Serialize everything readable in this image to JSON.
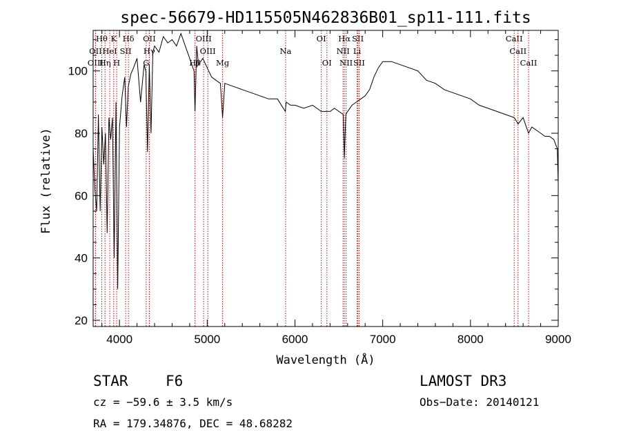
{
  "chart_data": {
    "type": "line",
    "title": "spec-56679-HD115505N462836B01_sp11-111.fits",
    "xlabel": "Wavelength (Å)",
    "ylabel": "Flux (relative)",
    "xlim": [
      3700,
      9000
    ],
    "ylim": [
      18,
      113
    ],
    "x_ticks": [
      4000,
      5000,
      6000,
      7000,
      8000,
      9000
    ],
    "y_ticks": [
      20,
      40,
      60,
      80,
      100
    ],
    "line_color": "#000000",
    "marker_color": "#cc0000",
    "grid": false,
    "series": [
      {
        "x": [
          3700,
          3720,
          3740,
          3760,
          3780,
          3800,
          3820,
          3840,
          3860,
          3880,
          3900,
          3920,
          3940,
          3960,
          3980,
          4000,
          4030,
          4060,
          4080,
          4100,
          4130,
          4160,
          4200,
          4240,
          4280,
          4300,
          4320,
          4340,
          4360,
          4380,
          4400,
          4450,
          4500,
          4550,
          4600,
          4650,
          4700,
          4750,
          4800,
          4850,
          4861,
          4880,
          4900,
          4950,
          5000,
          5050,
          5100,
          5150,
          5175,
          5200,
          5300,
          5400,
          5500,
          5600,
          5700,
          5800,
          5890,
          5900,
          5950,
          6000,
          6100,
          6200,
          6300,
          6400,
          6450,
          6500,
          6550,
          6563,
          6580,
          6600,
          6650,
          6700,
          6750,
          6800,
          6850,
          6900,
          6950,
          7000,
          7100,
          7200,
          7300,
          7400,
          7500,
          7600,
          7700,
          7800,
          7900,
          8000,
          8100,
          8200,
          8300,
          8400,
          8500,
          8542,
          8600,
          8662,
          8700,
          8800,
          8850,
          8900,
          8950,
          8990,
          9000
        ],
        "y": [
          75,
          62,
          55,
          86,
          55,
          82,
          70,
          80,
          48,
          85,
          78,
          85,
          40,
          90,
          30,
          82,
          92,
          98,
          82,
          95,
          99,
          101,
          104,
          90,
          102,
          100,
          74,
          102,
          80,
          106,
          108,
          106,
          111,
          109,
          110,
          108,
          112,
          108,
          104,
          100,
          87,
          108,
          102,
          104,
          101,
          98,
          97,
          96,
          85,
          96,
          95,
          94,
          93,
          92,
          91,
          91,
          87,
          90,
          89,
          89,
          88,
          89,
          87,
          87,
          88,
          87,
          86,
          72,
          86,
          87,
          89,
          90,
          91,
          92,
          94,
          98,
          101,
          103,
          103,
          102,
          101,
          100,
          97,
          96,
          94,
          93,
          92,
          91,
          89,
          88,
          87,
          86,
          85,
          83,
          85,
          80,
          82,
          80,
          79,
          79,
          78,
          75,
          64
        ]
      }
    ],
    "line_markers": [
      {
        "name": "Hθ",
        "x": 3798,
        "row": 1
      },
      {
        "name": "K",
        "x": 3934,
        "row": 1
      },
      {
        "name": "Hδ",
        "x": 4102,
        "row": 1
      },
      {
        "name": "OII",
        "x": 4340,
        "row": 1
      },
      {
        "name": "OIII",
        "x": 4959,
        "row": 1
      },
      {
        "name": "OI",
        "x": 6300,
        "row": 1
      },
      {
        "name": "Hα",
        "x": 6563,
        "row": 1
      },
      {
        "name": "SII",
        "x": 6717,
        "row": 1
      },
      {
        "name": "CaII",
        "x": 8498,
        "row": 1
      },
      {
        "name": "OII",
        "x": 3727,
        "row": 2
      },
      {
        "name": "HeI",
        "x": 3889,
        "row": 2
      },
      {
        "name": "SII",
        "x": 4070,
        "row": 2
      },
      {
        "name": "Hγ",
        "x": 4340,
        "row": 2
      },
      {
        "name": "OIII",
        "x": 5007,
        "row": 2
      },
      {
        "name": "Na",
        "x": 5893,
        "row": 2
      },
      {
        "name": "NII",
        "x": 6548,
        "row": 2
      },
      {
        "name": "Li",
        "x": 6708,
        "row": 2
      },
      {
        "name": "CaII",
        "x": 8542,
        "row": 2
      },
      {
        "name": "OIII",
        "x": 3727,
        "row": 3
      },
      {
        "name": "Hη",
        "x": 3835,
        "row": 3
      },
      {
        "name": "H",
        "x": 3968,
        "row": 3
      },
      {
        "name": "G",
        "x": 4304,
        "row": 3
      },
      {
        "name": "Hβ",
        "x": 4861,
        "row": 3
      },
      {
        "name": "Mg",
        "x": 5175,
        "row": 3
      },
      {
        "name": "OI",
        "x": 6364,
        "row": 3
      },
      {
        "name": "NII",
        "x": 6583,
        "row": 3
      },
      {
        "name": "SII",
        "x": 6731,
        "row": 3
      },
      {
        "name": "CaII",
        "x": 8662,
        "row": 3
      }
    ]
  },
  "info": {
    "class": "STAR",
    "subclass": "F6",
    "survey": "LAMOST DR3",
    "cz": "cz = −59.6 ± 3.5 km/s",
    "obs_date": "Obs−Date: 20140121",
    "coords": "RA = 179.34876, DEC =  48.68282"
  }
}
